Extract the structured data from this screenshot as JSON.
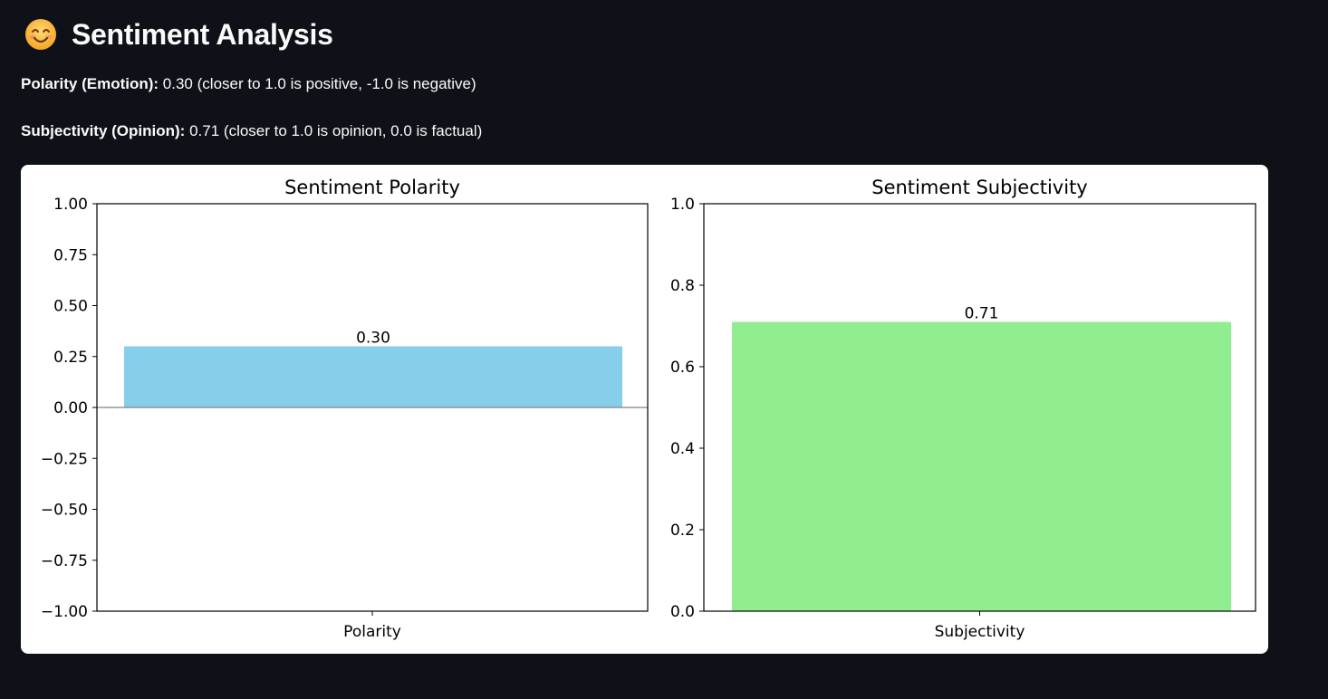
{
  "header": {
    "emoji_icon": "smiling-face-icon",
    "title": "Sentiment Analysis"
  },
  "metrics": {
    "polarity": {
      "label": "Polarity (Emotion):",
      "value": "0.30",
      "note": "(closer to 1.0 is positive, -1.0 is negative)"
    },
    "subjectivity": {
      "label": "Subjectivity (Opinion):",
      "value": "0.71",
      "note": "(closer to 1.0 is opinion, 0.0 is factual)"
    }
  },
  "chart_data": [
    {
      "type": "bar",
      "title": "Sentiment Polarity",
      "categories": [
        "Polarity"
      ],
      "values": [
        0.3
      ],
      "data_labels": [
        "0.30"
      ],
      "ylim": [
        -1.0,
        1.0
      ],
      "yticks": [
        -1.0,
        -0.75,
        -0.5,
        -0.25,
        0.0,
        0.25,
        0.5,
        0.75,
        1.0
      ],
      "ytick_labels": [
        "−1.00",
        "−0.75",
        "−0.50",
        "−0.25",
        "0.00",
        "0.25",
        "0.50",
        "0.75",
        "1.00"
      ],
      "baseline": 0,
      "bar_color": "#87ceeb",
      "xlabel": "",
      "ylabel": "",
      "grid": false
    },
    {
      "type": "bar",
      "title": "Sentiment Subjectivity",
      "categories": [
        "Subjectivity"
      ],
      "values": [
        0.71
      ],
      "data_labels": [
        "0.71"
      ],
      "ylim": [
        0.0,
        1.0
      ],
      "yticks": [
        0.0,
        0.2,
        0.4,
        0.6,
        0.8,
        1.0
      ],
      "ytick_labels": [
        "0.0",
        "0.2",
        "0.4",
        "0.6",
        "0.8",
        "1.0"
      ],
      "bar_color": "#90ee90",
      "xlabel": "",
      "ylabel": "",
      "grid": false
    }
  ]
}
